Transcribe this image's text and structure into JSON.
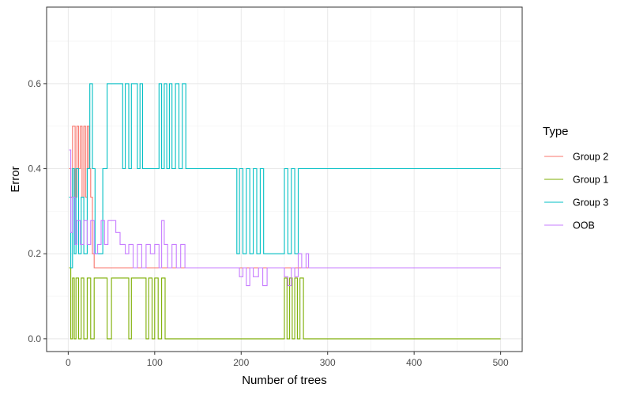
{
  "chart_data": {
    "type": "line",
    "xlabel": "Number of trees",
    "ylabel": "Error",
    "xlim": [
      -25,
      525
    ],
    "ylim": [
      -0.03,
      0.78
    ],
    "xticks": [
      0,
      100,
      200,
      300,
      400,
      500
    ],
    "yticks": [
      0.0,
      0.2,
      0.4,
      0.6
    ],
    "ytick_labels": [
      "0.0",
      "0.2",
      "0.4",
      "0.6"
    ],
    "grid": true,
    "legend": {
      "title": "Type",
      "position": "right"
    },
    "series": [
      {
        "name": " Group 2",
        "color": "#F8766D",
        "points": [
          [
            1,
            0.4
          ],
          [
            3,
            0.333
          ],
          [
            5,
            0.5
          ],
          [
            8,
            0.333
          ],
          [
            10,
            0.5
          ],
          [
            12,
            0.4
          ],
          [
            14,
            0.5
          ],
          [
            16,
            0.333
          ],
          [
            18,
            0.5
          ],
          [
            20,
            0.333
          ],
          [
            22,
            0.5
          ],
          [
            24,
            0.4
          ],
          [
            26,
            0.333
          ],
          [
            28,
            0.2
          ],
          [
            30,
            0.167
          ],
          [
            500,
            0.167
          ]
        ]
      },
      {
        "name": "Group 1",
        "color": "#7CAE00",
        "points": [
          [
            1,
            0.167
          ],
          [
            3,
            0.0
          ],
          [
            5,
            0.143
          ],
          [
            7,
            0.0
          ],
          [
            9,
            0.143
          ],
          [
            12,
            0.0
          ],
          [
            15,
            0.143
          ],
          [
            18,
            0.0
          ],
          [
            22,
            0.143
          ],
          [
            26,
            0.0
          ],
          [
            30,
            0.143
          ],
          [
            45,
            0.0
          ],
          [
            50,
            0.143
          ],
          [
            70,
            0.0
          ],
          [
            73,
            0.143
          ],
          [
            90,
            0.0
          ],
          [
            93,
            0.143
          ],
          [
            97,
            0.0
          ],
          [
            100,
            0.143
          ],
          [
            104,
            0.0
          ],
          [
            108,
            0.143
          ],
          [
            112,
            0.0
          ],
          [
            250,
            0.143
          ],
          [
            253,
            0.0
          ],
          [
            256,
            0.143
          ],
          [
            259,
            0.0
          ],
          [
            262,
            0.143
          ],
          [
            265,
            0.0
          ],
          [
            268,
            0.143
          ],
          [
            272,
            0.0
          ],
          [
            500,
            0.0
          ]
        ]
      },
      {
        "name": "Group 3",
        "color": "#00BFC4",
        "points": [
          [
            1,
            0.333
          ],
          [
            3,
            0.167
          ],
          [
            5,
            0.4
          ],
          [
            7,
            0.2
          ],
          [
            9,
            0.4
          ],
          [
            12,
            0.2
          ],
          [
            15,
            0.333
          ],
          [
            18,
            0.2
          ],
          [
            22,
            0.4
          ],
          [
            25,
            0.6
          ],
          [
            28,
            0.4
          ],
          [
            31,
            0.2
          ],
          [
            40,
            0.4
          ],
          [
            45,
            0.6
          ],
          [
            63,
            0.4
          ],
          [
            66,
            0.6
          ],
          [
            70,
            0.4
          ],
          [
            73,
            0.6
          ],
          [
            80,
            0.4
          ],
          [
            83,
            0.6
          ],
          [
            86,
            0.4
          ],
          [
            105,
            0.6
          ],
          [
            108,
            0.4
          ],
          [
            111,
            0.6
          ],
          [
            114,
            0.4
          ],
          [
            117,
            0.6
          ],
          [
            120,
            0.4
          ],
          [
            124,
            0.6
          ],
          [
            128,
            0.4
          ],
          [
            132,
            0.6
          ],
          [
            136,
            0.4
          ],
          [
            195,
            0.2
          ],
          [
            198,
            0.4
          ],
          [
            202,
            0.2
          ],
          [
            206,
            0.4
          ],
          [
            210,
            0.2
          ],
          [
            214,
            0.4
          ],
          [
            218,
            0.2
          ],
          [
            222,
            0.4
          ],
          [
            226,
            0.2
          ],
          [
            250,
            0.4
          ],
          [
            254,
            0.2
          ],
          [
            258,
            0.4
          ],
          [
            262,
            0.2
          ],
          [
            266,
            0.4
          ],
          [
            500,
            0.4
          ]
        ]
      },
      {
        "name": "OOB",
        "color": "#C77CFF",
        "points": [
          [
            1,
            0.444
          ],
          [
            3,
            0.25
          ],
          [
            5,
            0.333
          ],
          [
            8,
            0.222
          ],
          [
            10,
            0.278
          ],
          [
            14,
            0.222
          ],
          [
            18,
            0.278
          ],
          [
            22,
            0.222
          ],
          [
            26,
            0.278
          ],
          [
            30,
            0.2
          ],
          [
            34,
            0.222
          ],
          [
            38,
            0.278
          ],
          [
            42,
            0.222
          ],
          [
            46,
            0.278
          ],
          [
            55,
            0.25
          ],
          [
            60,
            0.222
          ],
          [
            66,
            0.2
          ],
          [
            70,
            0.222
          ],
          [
            75,
            0.167
          ],
          [
            80,
            0.222
          ],
          [
            85,
            0.167
          ],
          [
            90,
            0.222
          ],
          [
            95,
            0.2
          ],
          [
            100,
            0.222
          ],
          [
            105,
            0.167
          ],
          [
            108,
            0.278
          ],
          [
            111,
            0.222
          ],
          [
            115,
            0.167
          ],
          [
            120,
            0.222
          ],
          [
            125,
            0.167
          ],
          [
            130,
            0.222
          ],
          [
            135,
            0.167
          ],
          [
            195,
            0.167
          ],
          [
            198,
            0.146
          ],
          [
            202,
            0.167
          ],
          [
            206,
            0.125
          ],
          [
            210,
            0.167
          ],
          [
            214,
            0.146
          ],
          [
            220,
            0.167
          ],
          [
            225,
            0.125
          ],
          [
            230,
            0.167
          ],
          [
            250,
            0.146
          ],
          [
            254,
            0.125
          ],
          [
            258,
            0.167
          ],
          [
            262,
            0.146
          ],
          [
            266,
            0.2
          ],
          [
            270,
            0.167
          ],
          [
            275,
            0.2
          ],
          [
            278,
            0.167
          ],
          [
            500,
            0.167
          ]
        ]
      }
    ]
  }
}
